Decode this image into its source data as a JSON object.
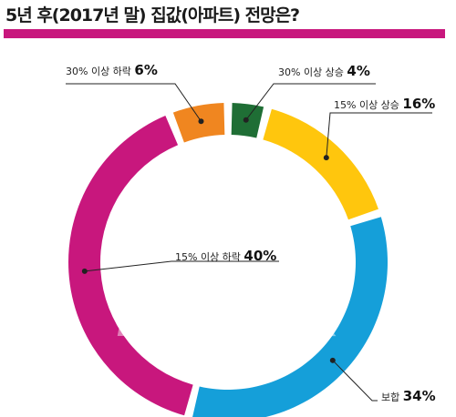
{
  "header": {
    "title": "5년 후(2017년 말) 집값(아파트) 전망은?",
    "bar_color": "#c8177d"
  },
  "watermark": "MoneyWeek",
  "chart_data": {
    "type": "pie",
    "title": "5년 후(2017년 말) 집값(아파트) 전망은?",
    "slices": [
      {
        "label": "30% 이상 상승",
        "value": 4,
        "value_label": "4%",
        "color": "#1f6e35"
      },
      {
        "label": "15% 이상 상승",
        "value": 16,
        "value_label": "16%",
        "color": "#ffc60d"
      },
      {
        "label": "보합",
        "value": 34,
        "value_label": "34%",
        "color": "#159fd9"
      },
      {
        "label": "15% 이상 하락",
        "value": 40,
        "value_label": "40%",
        "color": "#c8177d"
      },
      {
        "label": "30% 이상 하락",
        "value": 6,
        "value_label": "6%",
        "color": "#f08620"
      }
    ]
  }
}
